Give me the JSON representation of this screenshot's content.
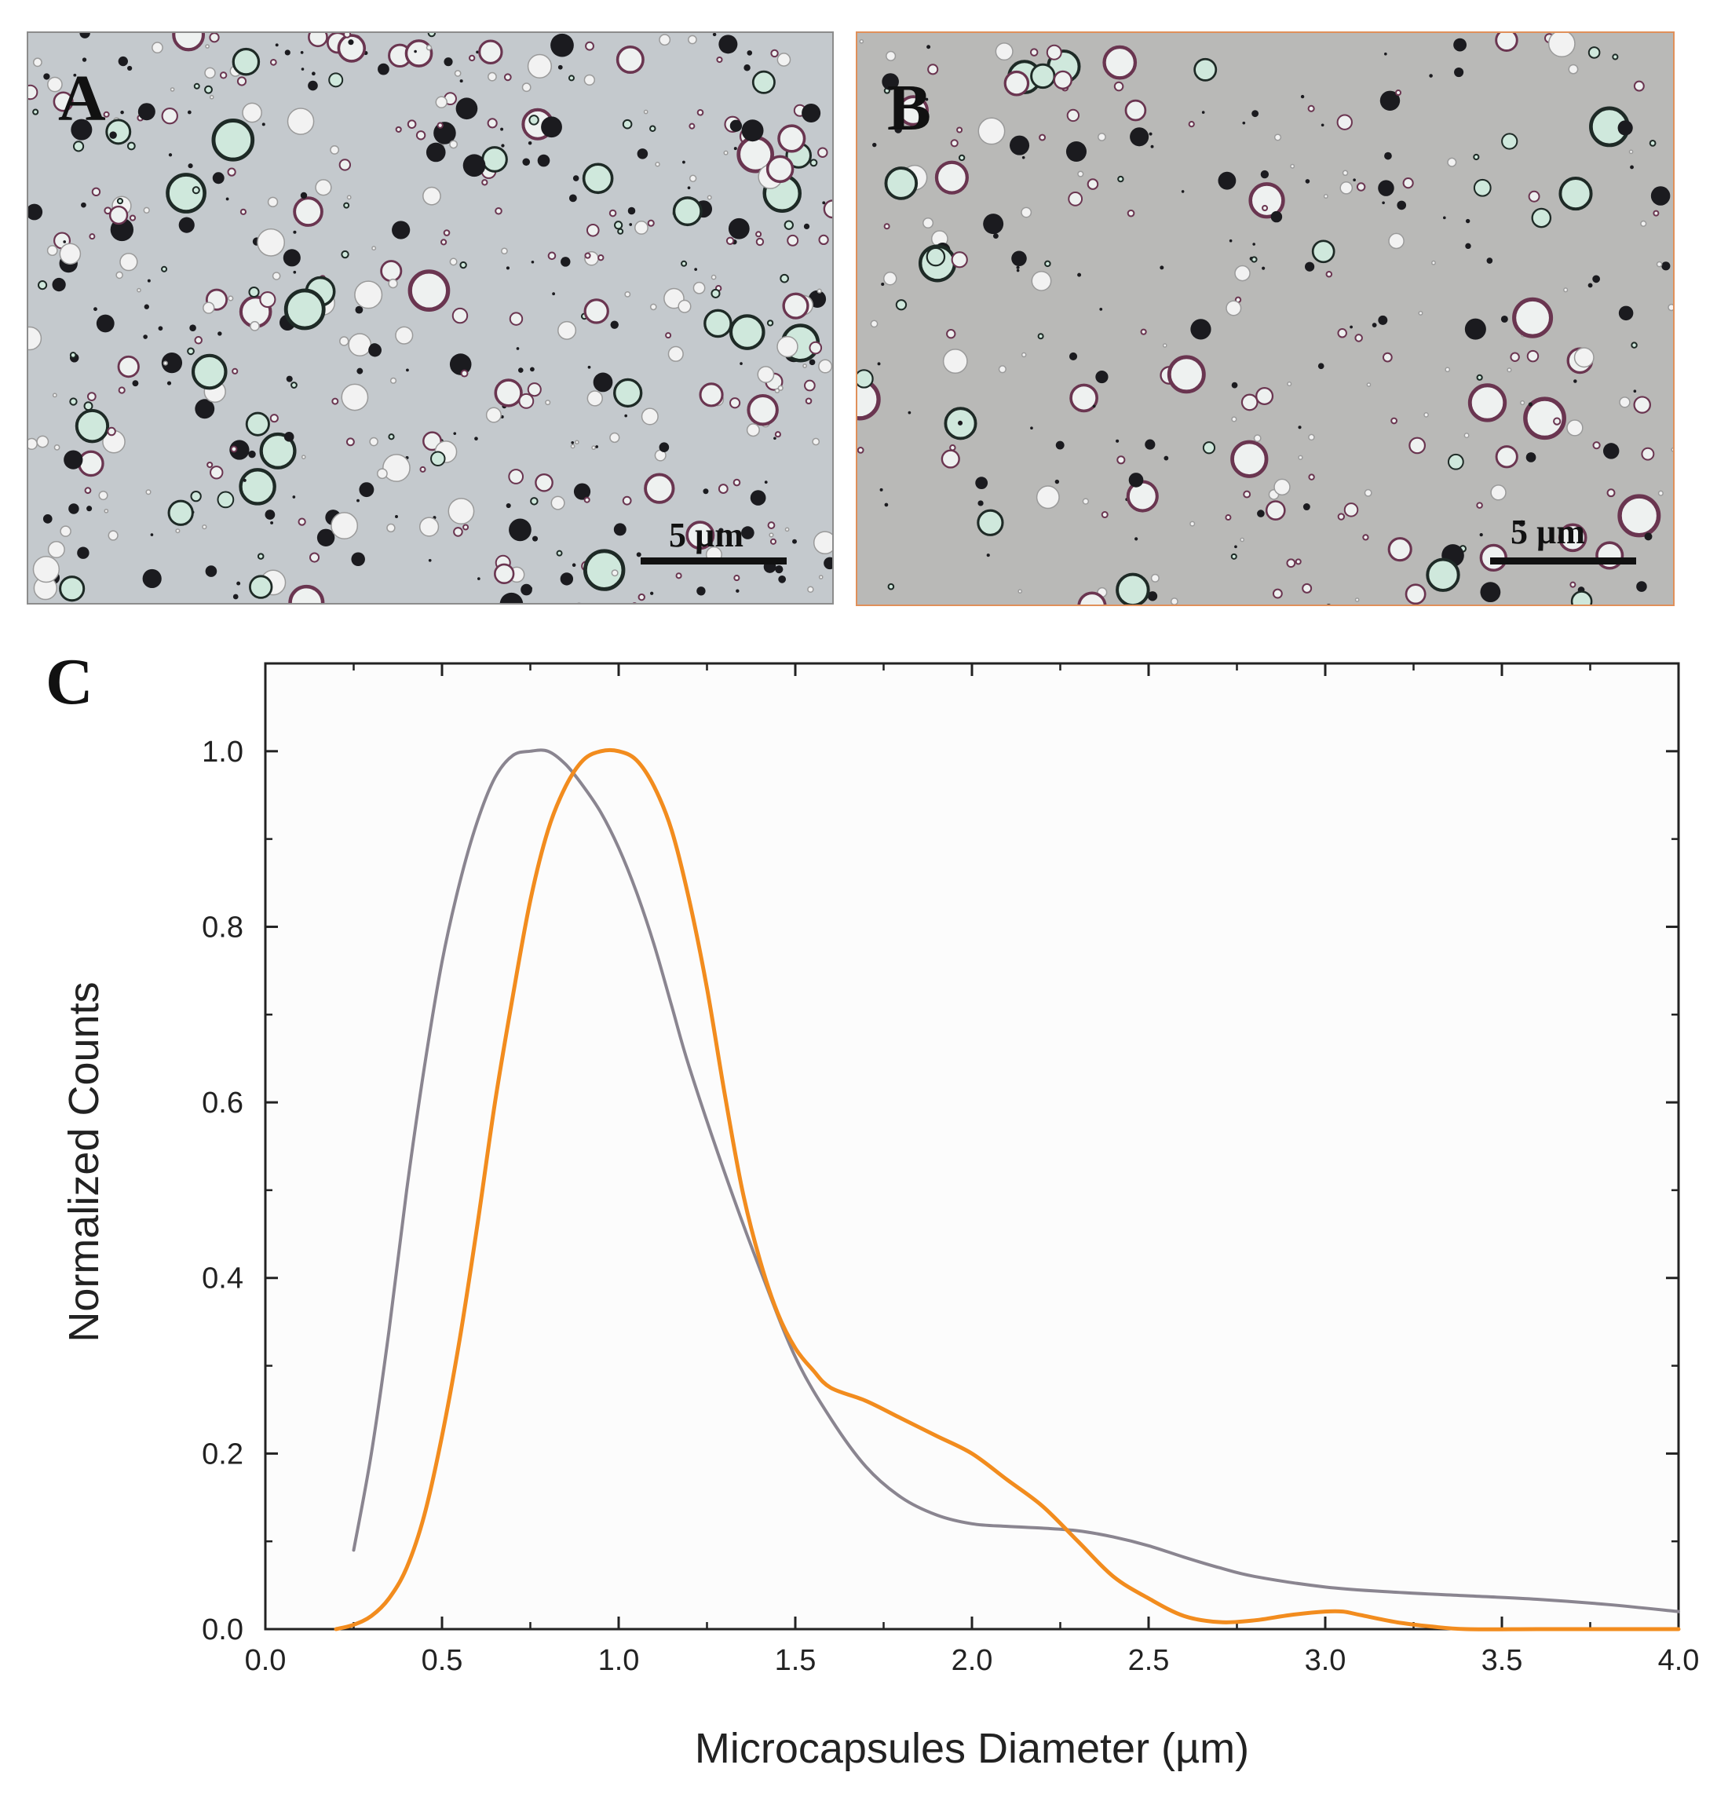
{
  "panels": {
    "a": {
      "letter": "A",
      "scale_label": "5 µm"
    },
    "b": {
      "letter": "B",
      "scale_label": "5 µm"
    }
  },
  "chart_panel_letter": "C",
  "colors": {
    "series_gray": "#8a8590",
    "series_orange": "#f28c1e",
    "panel_a_bg": "#c4c9cd",
    "panel_b_bg": "#b9b9b7",
    "panel_b_border": "#e0905a"
  },
  "chart_data": {
    "type": "line",
    "title": "",
    "xlabel": "Microcapsules Diameter (µm)",
    "ylabel": "Normalized Counts",
    "xlim": [
      0.0,
      4.0
    ],
    "ylim": [
      0.0,
      1.1
    ],
    "xticks": [
      "0.0",
      "0.5",
      "1.0",
      "1.5",
      "2.0",
      "2.5",
      "3.0",
      "3.5",
      "4.0"
    ],
    "yticks": [
      "0.0",
      "0.2",
      "0.4",
      "0.6",
      "0.8",
      "1.0"
    ],
    "grid": false,
    "legend": "none",
    "series": [
      {
        "color": "#8a8590",
        "x": [
          0.25,
          0.3,
          0.35,
          0.4,
          0.45,
          0.5,
          0.55,
          0.6,
          0.65,
          0.7,
          0.75,
          0.8,
          0.85,
          0.9,
          0.95,
          1.0,
          1.05,
          1.1,
          1.15,
          1.2,
          1.3,
          1.4,
          1.5,
          1.6,
          1.7,
          1.8,
          1.9,
          2.0,
          2.1,
          2.2,
          2.3,
          2.4,
          2.5,
          2.6,
          2.7,
          2.8,
          3.0,
          3.2,
          3.4,
          3.6,
          3.8,
          4.0
        ],
        "y": [
          0.09,
          0.2,
          0.34,
          0.5,
          0.64,
          0.76,
          0.85,
          0.92,
          0.97,
          0.995,
          1.0,
          1.0,
          0.985,
          0.96,
          0.93,
          0.89,
          0.84,
          0.78,
          0.71,
          0.64,
          0.52,
          0.41,
          0.31,
          0.24,
          0.185,
          0.15,
          0.13,
          0.12,
          0.117,
          0.115,
          0.112,
          0.105,
          0.095,
          0.082,
          0.07,
          0.06,
          0.048,
          0.042,
          0.038,
          0.034,
          0.028,
          0.02
        ]
      },
      {
        "color": "#f28c1e",
        "x": [
          0.2,
          0.25,
          0.3,
          0.35,
          0.4,
          0.45,
          0.5,
          0.55,
          0.6,
          0.65,
          0.7,
          0.75,
          0.8,
          0.85,
          0.9,
          0.95,
          1.0,
          1.05,
          1.1,
          1.15,
          1.2,
          1.25,
          1.3,
          1.35,
          1.4,
          1.45,
          1.5,
          1.55,
          1.6,
          1.7,
          1.8,
          1.9,
          2.0,
          2.1,
          2.2,
          2.3,
          2.4,
          2.5,
          2.6,
          2.7,
          2.8,
          2.9,
          3.0,
          3.05,
          3.1,
          3.2,
          3.3,
          3.4,
          3.6,
          3.8,
          4.0
        ],
        "y": [
          0.0,
          0.005,
          0.015,
          0.035,
          0.07,
          0.13,
          0.22,
          0.33,
          0.46,
          0.6,
          0.72,
          0.83,
          0.91,
          0.96,
          0.99,
          1.0,
          1.0,
          0.99,
          0.96,
          0.91,
          0.83,
          0.73,
          0.61,
          0.5,
          0.42,
          0.36,
          0.32,
          0.295,
          0.275,
          0.26,
          0.24,
          0.22,
          0.2,
          0.17,
          0.14,
          0.1,
          0.06,
          0.035,
          0.015,
          0.008,
          0.01,
          0.016,
          0.02,
          0.02,
          0.016,
          0.008,
          0.003,
          0.0,
          0.0,
          0.0,
          0.0
        ]
      }
    ]
  }
}
